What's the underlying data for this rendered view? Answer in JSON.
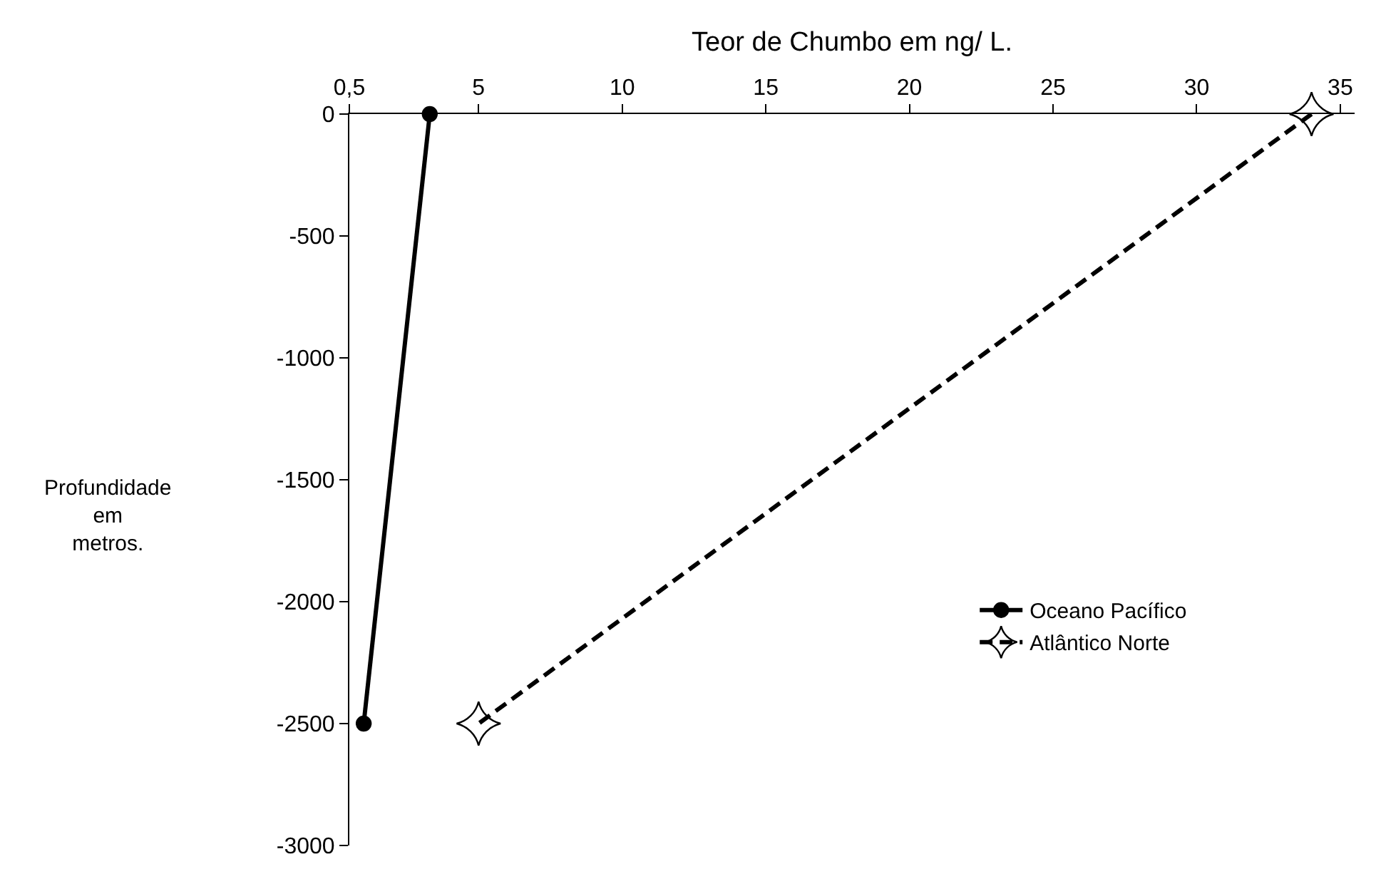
{
  "chart_data": {
    "type": "line",
    "xlabel": "Teor de Chumbo em ng/ L.",
    "annotations": [
      "Profundidade\nem\nmetros."
    ],
    "xlim": [
      0.5,
      35.5
    ],
    "xticks": [
      {
        "value": 0.5,
        "label": "0,5"
      },
      5,
      10,
      15,
      20,
      25,
      30,
      35
    ],
    "ylim": [
      -3000,
      0
    ],
    "yticks": [
      0,
      -500,
      -1000,
      -1500,
      -2000,
      -2500,
      -3000
    ],
    "legend": "right",
    "series": [
      {
        "name": "Oceano Pacífico",
        "color": "#000000",
        "x": [
          3.3,
          1
        ],
        "values": [
          0,
          -2500
        ],
        "marker": "circle",
        "line_style": "solid"
      },
      {
        "name": "Atlântico Norte",
        "color": "#000000",
        "x": [
          34,
          5
        ],
        "values": [
          0,
          -2500
        ],
        "marker": "star",
        "line_style": "dashed"
      }
    ]
  }
}
